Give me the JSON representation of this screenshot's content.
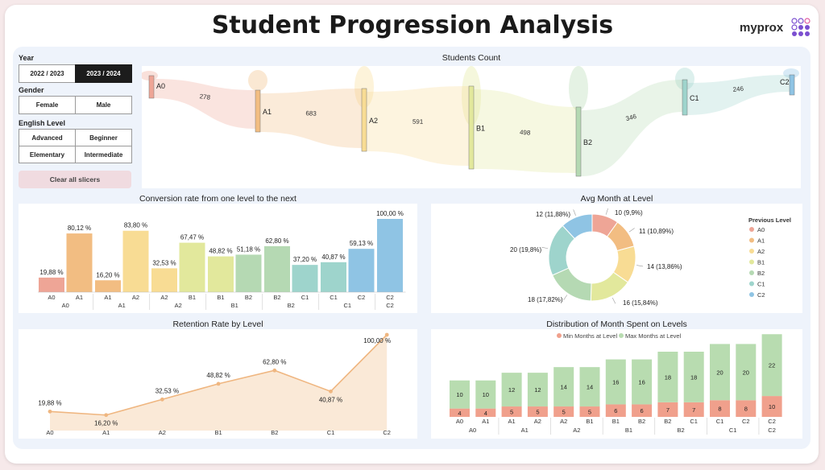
{
  "page": {
    "title": "Student Progression Analysis",
    "logo_text": "myprox"
  },
  "colors": {
    "A0": "#eea596",
    "A1": "#f2bd82",
    "A2": "#f8dc94",
    "B1": "#e2e89c",
    "B2": "#b5d9b3",
    "C1": "#9ed4cc",
    "C2": "#8fc4e4"
  },
  "slicers": {
    "year_label": "Year",
    "years": [
      "2022 / 2023",
      "2023 / 2024"
    ],
    "gender_label": "Gender",
    "genders": [
      "Female",
      "Male"
    ],
    "english_label": "English Level",
    "levels": [
      "Advanced",
      "Beginner",
      "Elementary",
      "Intermediate"
    ],
    "clear_label": "Clear all slicers"
  },
  "sankey": {
    "title": "Students Count",
    "nodes": [
      "A0",
      "A1",
      "A2",
      "B1",
      "B2",
      "C1",
      "C2"
    ],
    "flows": [
      "278",
      "683",
      "591",
      "498",
      "346",
      "246"
    ]
  },
  "chart_data": [
    {
      "type": "bar",
      "title": "Conversion rate from one level to the next",
      "groups": [
        "A0",
        "A1",
        "A2",
        "B1",
        "B2",
        "C1",
        "C2"
      ],
      "pairs": [
        {
          "group": "A0",
          "labels": [
            "A0",
            "A1"
          ],
          "values": [
            19.88,
            80.12
          ],
          "texts": [
            "19,88 %",
            "80,12 %"
          ]
        },
        {
          "group": "A1",
          "labels": [
            "A1",
            "A2"
          ],
          "values": [
            16.2,
            83.8
          ],
          "texts": [
            "16,20 %",
            "83,80 %"
          ]
        },
        {
          "group": "A2",
          "labels": [
            "A2",
            "B1"
          ],
          "values": [
            32.53,
            67.47
          ],
          "texts": [
            "32,53 %",
            "67,47 %"
          ]
        },
        {
          "group": "B1",
          "labels": [
            "B1",
            "B2"
          ],
          "values": [
            48.82,
            51.18
          ],
          "texts": [
            "48,82 %",
            "51,18 %"
          ]
        },
        {
          "group": "B2",
          "labels": [
            "B2",
            "C1"
          ],
          "values": [
            62.8,
            37.2
          ],
          "texts": [
            "62,80 %",
            "37,20 %"
          ]
        },
        {
          "group": "C1",
          "labels": [
            "C1",
            "C2"
          ],
          "values": [
            40.87,
            59.13
          ],
          "texts": [
            "40,87 %",
            "59,13 %"
          ]
        },
        {
          "group": "C2",
          "labels": [
            "C2"
          ],
          "values": [
            100.0
          ],
          "texts": [
            "100,00 %"
          ]
        }
      ],
      "ylim": [
        0,
        100
      ]
    },
    {
      "type": "pie",
      "title": "Avg Month at Level",
      "legend_title": "Previous Level",
      "categories": [
        "A0",
        "A1",
        "A2",
        "B1",
        "B2",
        "C1",
        "C2"
      ],
      "values": [
        10,
        11,
        14,
        16,
        18,
        20,
        12
      ],
      "labels": [
        "10 (9,9%)",
        "11 (10,89%)",
        "14 (13,86%)",
        "16 (15,84%)",
        "18 (17,82%)",
        "20 (19,8%)",
        "12 (11,88%)"
      ]
    },
    {
      "type": "area",
      "title": "Retention Rate by Level",
      "categories": [
        "A0",
        "A1",
        "A2",
        "B1",
        "B2",
        "C1",
        "C2"
      ],
      "values": [
        19.88,
        16.2,
        32.53,
        48.82,
        62.8,
        40.87,
        100.0
      ],
      "labels": [
        "19,88 %",
        "16,20 %",
        "32,53 %",
        "48,82 %",
        "62,80 %",
        "40,87 %",
        "100,00 %"
      ],
      "ylim": [
        0,
        100
      ]
    },
    {
      "type": "bar",
      "title": "Distribution of Month Spent on Levels",
      "legend": [
        "Min Months at Level",
        "Max Months at Level"
      ],
      "groups": [
        "A0",
        "A1",
        "A2",
        "B1",
        "B2",
        "C1",
        "C2"
      ],
      "pairs": [
        {
          "group": "A0",
          "labels": [
            "A0",
            "A1"
          ],
          "min": [
            4,
            4
          ],
          "max": [
            10,
            10
          ]
        },
        {
          "group": "A1",
          "labels": [
            "A1",
            "A2"
          ],
          "min": [
            5,
            5
          ],
          "max": [
            12,
            12
          ]
        },
        {
          "group": "A2",
          "labels": [
            "A2",
            "B1"
          ],
          "min": [
            5,
            5
          ],
          "max": [
            14,
            14
          ]
        },
        {
          "group": "B1",
          "labels": [
            "B1",
            "B2"
          ],
          "min": [
            6,
            6
          ],
          "max": [
            16,
            16
          ]
        },
        {
          "group": "B2",
          "labels": [
            "B2",
            "C1"
          ],
          "min": [
            7,
            7
          ],
          "max": [
            18,
            18
          ]
        },
        {
          "group": "C1",
          "labels": [
            "C1",
            "C2"
          ],
          "min": [
            8,
            8
          ],
          "max": [
            20,
            20
          ]
        },
        {
          "group": "C2",
          "labels": [
            "C2"
          ],
          "min": [
            10
          ],
          "max": [
            22
          ]
        }
      ],
      "colors": {
        "min": "#f0a08c",
        "max": "#b8dcb0"
      }
    }
  ]
}
